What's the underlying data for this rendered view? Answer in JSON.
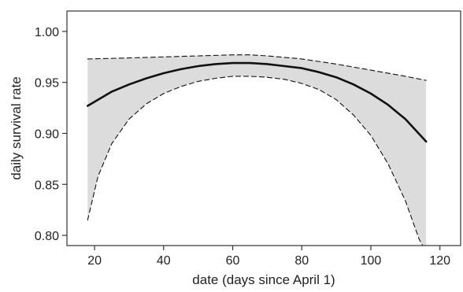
{
  "chart_data": {
    "type": "line",
    "title": "",
    "xlabel": "date (days since April 1)",
    "ylabel": "daily survival rate",
    "xlim": [
      12,
      126
    ],
    "ylim": [
      0.79,
      1.02
    ],
    "x_ticks": [
      20,
      40,
      60,
      80,
      100,
      120
    ],
    "x_tick_labels": [
      "20",
      "40",
      "60",
      "80",
      "100",
      "120"
    ],
    "y_ticks": [
      0.8,
      0.85,
      0.9,
      0.95,
      1.0
    ],
    "y_tick_labels": [
      "0.80",
      "0.85",
      "0.90",
      "0.95",
      "1.00"
    ],
    "grid": false,
    "legend": "none",
    "colors": {
      "estimate": "#111111",
      "bounds": "#111111",
      "band_fill": "#dcdcdc",
      "axes": "#333333"
    },
    "series": [
      {
        "role": "estimate",
        "style": "solid",
        "x": [
          18,
          25,
          30,
          35,
          40,
          45,
          50,
          55,
          60,
          65,
          70,
          75,
          80,
          85,
          90,
          95,
          100,
          105,
          110,
          116
        ],
        "y": [
          0.927,
          0.941,
          0.948,
          0.954,
          0.959,
          0.963,
          0.966,
          0.968,
          0.969,
          0.969,
          0.968,
          0.966,
          0.964,
          0.96,
          0.955,
          0.948,
          0.939,
          0.928,
          0.914,
          0.892
        ]
      },
      {
        "role": "upper",
        "style": "dashed",
        "x": [
          18,
          30,
          40,
          50,
          60,
          65,
          70,
          80,
          90,
          100,
          110,
          116
        ],
        "y": [
          0.973,
          0.974,
          0.975,
          0.976,
          0.977,
          0.977,
          0.976,
          0.973,
          0.968,
          0.962,
          0.956,
          0.952
        ]
      },
      {
        "role": "lower",
        "style": "dashed",
        "x": [
          18,
          21,
          25,
          30,
          35,
          40,
          45,
          50,
          55,
          60,
          65,
          70,
          75,
          80,
          85,
          90,
          95,
          100,
          105,
          110,
          114,
          115
        ],
        "y": [
          0.815,
          0.858,
          0.89,
          0.914,
          0.929,
          0.939,
          0.946,
          0.951,
          0.954,
          0.956,
          0.956,
          0.955,
          0.953,
          0.949,
          0.943,
          0.933,
          0.918,
          0.898,
          0.87,
          0.834,
          0.796,
          0.786
        ]
      }
    ]
  }
}
